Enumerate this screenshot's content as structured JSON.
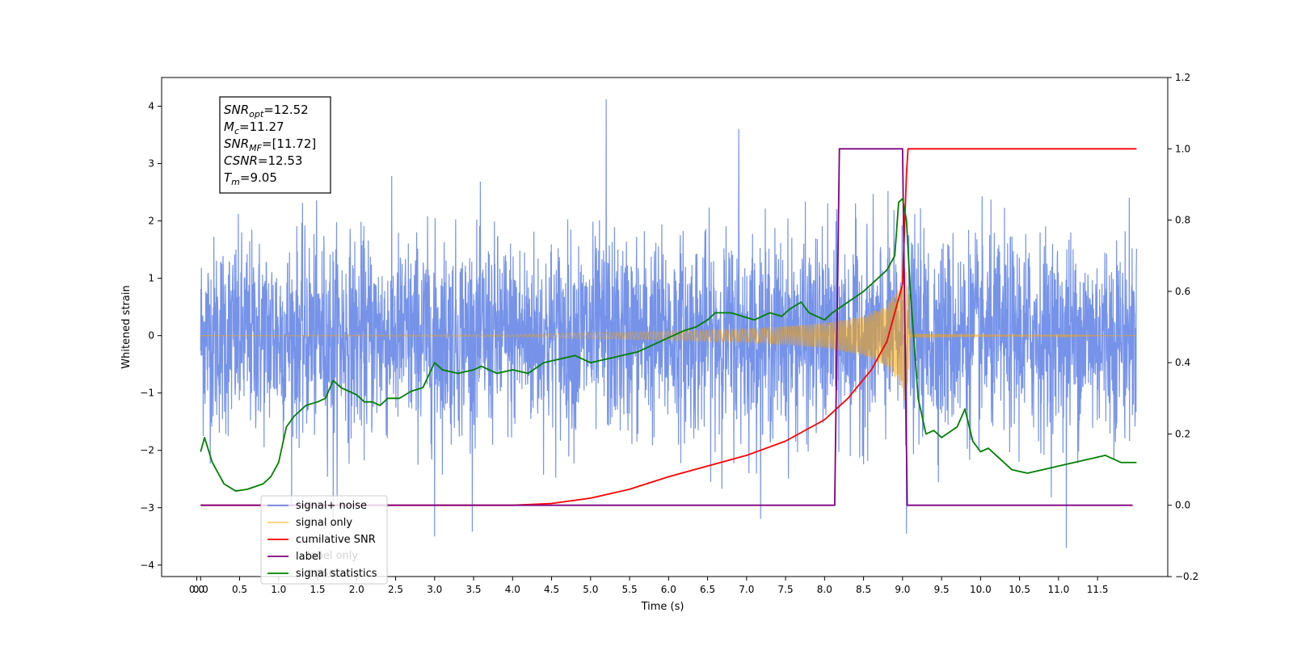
{
  "chart_data": {
    "type": "line",
    "xlabel": "Time (s)",
    "ylabel_left": "Whitened strain",
    "ylabel_right": "",
    "xlim": [
      -0.5,
      12.4
    ],
    "ylim_left": [
      -4.2,
      4.5
    ],
    "ylim_right": [
      -0.2,
      1.2
    ],
    "x_ticks": [
      "0.0",
      "0.0",
      "0.5",
      "1.0",
      "1.5",
      "2.0",
      "2.5",
      "3.0",
      "3.5",
      "4.0",
      "4.5",
      "5.0",
      "5.5",
      "6.0",
      "6.5",
      "7.0",
      "7.5",
      "8.0",
      "8.5",
      "9.0",
      "9.5",
      "10.0",
      "10.5",
      "11.0",
      "11.5"
    ],
    "x_tick_values": [
      -0.05,
      0.0,
      0.5,
      1.0,
      1.5,
      2.0,
      2.5,
      3.0,
      3.5,
      4.0,
      4.5,
      5.0,
      5.5,
      6.0,
      6.5,
      7.0,
      7.5,
      8.0,
      8.5,
      9.0,
      9.5,
      10.0,
      10.5,
      11.0,
      11.5
    ],
    "y_ticks_left": [
      4,
      3,
      2,
      1,
      0,
      -1,
      -2,
      -3,
      -4
    ],
    "y_ticks_right": [
      1.2,
      1.0,
      0.8,
      0.6,
      0.4,
      0.2,
      0.0,
      -0.2
    ],
    "annotations": [
      {
        "name": "SNR",
        "sub": "opt",
        "value": "=12.52"
      },
      {
        "name": "M",
        "sub": "c",
        "value": "=11.27"
      },
      {
        "name": "SNR",
        "sub": "MF",
        "value": "=[11.72]"
      },
      {
        "name": "CSNR",
        "sub": "",
        "value": "=12.53"
      },
      {
        "name": "T",
        "sub": "m",
        "value": "=9.05"
      }
    ],
    "legend": {
      "placement": "lower-left",
      "entries": [
        {
          "label": "signal+ noise",
          "color": "#4169e1"
        },
        {
          "label": "signal only",
          "color": "#ffa500"
        },
        {
          "label": "cumilative SNR",
          "color": "#ff0000"
        },
        {
          "label": "label",
          "color": "#800080"
        },
        {
          "label": "signal statistics",
          "color": "#008000"
        }
      ],
      "hidden_behind_legend": [
        "label only",
        "noise"
      ]
    },
    "series": [
      {
        "name": "signal+ noise",
        "axis": "left",
        "color": "#4169e1",
        "description": "white noise ~N(0,1), t from 0 to 12 s",
        "x_range": [
          0.0,
          12.0
        ],
        "extremes": [
          [
            5.2,
            4.12
          ],
          [
            6.9,
            3.6
          ],
          [
            11.1,
            -3.7
          ],
          [
            3.0,
            -3.5
          ],
          [
            9.05,
            -3.45
          ],
          [
            1.7,
            -3.3
          ]
        ]
      },
      {
        "name": "signal only",
        "axis": "left",
        "color": "#ffa500",
        "description": "chirp, amplitude grows to ~1.3 at merger then ringdown",
        "envelope_x": [
          0.0,
          4.0,
          5.0,
          6.0,
          7.0,
          7.5,
          8.0,
          8.5,
          8.8,
          9.0,
          9.05,
          9.1,
          12.0
        ],
        "envelope_amp": [
          0.0,
          0.02,
          0.05,
          0.08,
          0.12,
          0.16,
          0.22,
          0.35,
          0.55,
          0.95,
          1.3,
          0.03,
          0.0
        ]
      },
      {
        "name": "cumilative SNR",
        "axis": "right",
        "color": "#ff0000",
        "x": [
          0.0,
          4.0,
          4.5,
          5.0,
          5.5,
          6.0,
          6.5,
          7.0,
          7.5,
          8.0,
          8.3,
          8.6,
          8.8,
          9.0,
          9.05,
          9.07,
          12.0
        ],
        "y": [
          0.0,
          0.0,
          0.005,
          0.02,
          0.045,
          0.08,
          0.11,
          0.14,
          0.18,
          0.24,
          0.3,
          0.38,
          0.46,
          0.62,
          0.93,
          1.0,
          1.0
        ]
      },
      {
        "name": "label",
        "axis": "right",
        "color": "#800080",
        "x": [
          0.0,
          8.13,
          8.19,
          9.0,
          9.06,
          11.95
        ],
        "y": [
          0.0,
          0.0,
          1.0,
          1.0,
          0.0,
          0.0
        ]
      },
      {
        "name": "signal statistics",
        "axis": "right",
        "color": "#008000",
        "x": [
          0.0,
          0.05,
          0.15,
          0.3,
          0.45,
          0.6,
          0.8,
          0.9,
          1.0,
          1.1,
          1.2,
          1.35,
          1.5,
          1.6,
          1.7,
          1.8,
          2.0,
          2.1,
          2.2,
          2.3,
          2.4,
          2.55,
          2.7,
          2.85,
          3.0,
          3.1,
          3.3,
          3.5,
          3.6,
          3.8,
          4.0,
          4.2,
          4.4,
          4.6,
          4.8,
          5.0,
          5.2,
          5.4,
          5.6,
          5.8,
          6.0,
          6.1,
          6.2,
          6.35,
          6.5,
          6.6,
          6.8,
          6.95,
          7.1,
          7.3,
          7.45,
          7.55,
          7.7,
          7.8,
          8.0,
          8.1,
          8.3,
          8.5,
          8.6,
          8.7,
          8.8,
          8.9,
          8.95,
          9.0,
          9.05,
          9.1,
          9.2,
          9.3,
          9.4,
          9.5,
          9.7,
          9.8,
          9.9,
          10.0,
          10.1,
          10.2,
          10.4,
          10.6,
          10.8,
          11.0,
          11.2,
          11.4,
          11.6,
          11.8,
          12.0
        ],
        "y": [
          0.15,
          0.19,
          0.12,
          0.06,
          0.04,
          0.045,
          0.06,
          0.08,
          0.12,
          0.22,
          0.25,
          0.28,
          0.29,
          0.3,
          0.35,
          0.33,
          0.31,
          0.29,
          0.29,
          0.28,
          0.3,
          0.3,
          0.32,
          0.33,
          0.4,
          0.38,
          0.37,
          0.38,
          0.39,
          0.37,
          0.38,
          0.37,
          0.4,
          0.41,
          0.42,
          0.4,
          0.41,
          0.42,
          0.43,
          0.45,
          0.47,
          0.48,
          0.49,
          0.5,
          0.52,
          0.54,
          0.54,
          0.53,
          0.52,
          0.54,
          0.53,
          0.55,
          0.57,
          0.54,
          0.52,
          0.54,
          0.57,
          0.6,
          0.62,
          0.64,
          0.66,
          0.7,
          0.85,
          0.86,
          0.8,
          0.6,
          0.3,
          0.2,
          0.21,
          0.19,
          0.22,
          0.27,
          0.18,
          0.15,
          0.16,
          0.14,
          0.1,
          0.09,
          0.1,
          0.11,
          0.12,
          0.13,
          0.14,
          0.12,
          0.12
        ]
      }
    ]
  }
}
